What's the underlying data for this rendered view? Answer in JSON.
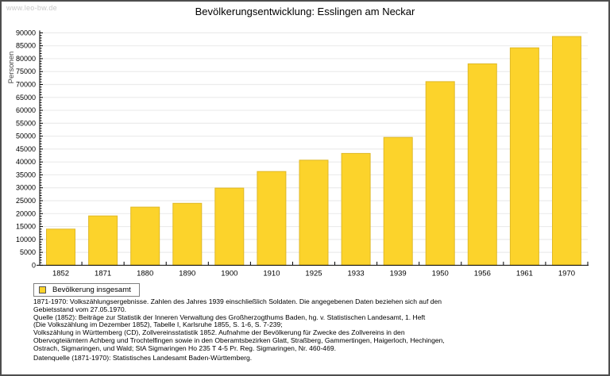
{
  "watermark": "www.leo-bw.de",
  "title": "Bevölkerungsentwicklung: Esslingen am Neckar",
  "legend": {
    "label": "Bevölkerung insgesamt"
  },
  "colors": {
    "bar_fill": "#FCD32B",
    "bar_border": "#DFB928",
    "grid": "#ECECEC",
    "axis": "#000000",
    "ylabel_text": "#444444",
    "watermark_text": "#C9C9C9"
  },
  "chart_data": {
    "type": "bar",
    "title": "Bevölkerungsentwicklung: Esslingen am Neckar",
    "xlabel": "",
    "ylabel": "Personen",
    "categories": [
      "1852",
      "1871",
      "1880",
      "1890",
      "1900",
      "1910",
      "1925",
      "1933",
      "1939",
      "1950",
      "1956",
      "1961",
      "1970"
    ],
    "values": [
      14000,
      19100,
      22500,
      24000,
      29900,
      36300,
      40700,
      43300,
      49500,
      71100,
      78000,
      84200,
      88600
    ],
    "series_name": "Bevölkerung insgesamt",
    "ylim": [
      0,
      90000
    ],
    "ytick_step": 5000,
    "yminor_step": 1000,
    "grid": true,
    "legend_position": "bottom-left"
  },
  "footnotes": [
    "1871-1970: Volkszählungsergebnisse. Zahlen des Jahres 1939 einschließlich Soldaten. Die angegebenen Daten beziehen sich auf den",
    "Gebietsstand vom 27.05.1970.",
    "Quelle (1852): Beiträge zur Statistik der Inneren Verwaltung des Großherzogthums Baden, hg. v. Statistischen Landesamt, 1. Heft",
    "(Die Volkszählung im Dezember 1852), Tabelle I, Karlsruhe 1855, S. 1-6, S. 7-239;",
    "Volkszählung in Württemberg (CD), Zollvereinsstatistik 1852. Aufnahme der Bevölkerung für Zwecke des Zollvereins in den",
    "Obervogteiämtern Achberg und Trochtelfingen sowie in den Oberamtsbezirken Glatt, Straßberg, Gammertingen, Haigerloch, Hechingen,",
    "Ostrach, Sigmaringen, und Wald; StA Sigmaringen Ho 235 T 4-5 Pr. Reg. Sigmaringen, Nr. 460-469."
  ],
  "datenquelle": "Datenquelle (1871-1970): Statistisches Landesamt Baden-Württemberg."
}
